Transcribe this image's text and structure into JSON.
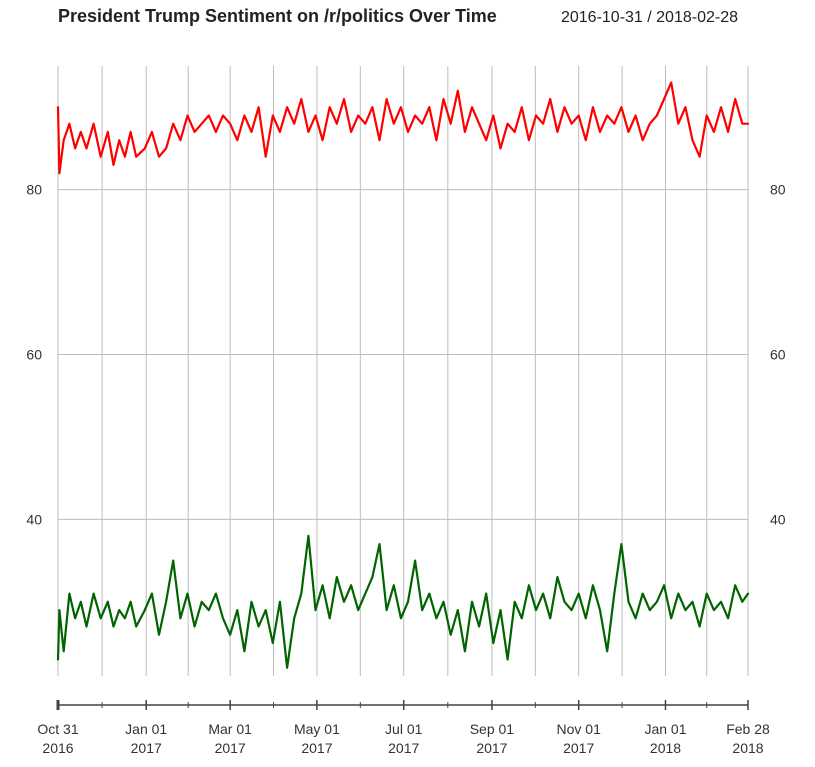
{
  "chart_data": {
    "type": "line",
    "title": "President Trump Sentiment on /r/politics Over Time",
    "date_range": "2016-10-31 / 2018-02-28",
    "ylim": [
      21,
      95
    ],
    "y_ticks": [
      {
        "value": 40,
        "label": "40"
      },
      {
        "value": 60,
        "label": "60"
      },
      {
        "value": 80,
        "label": "80"
      }
    ],
    "x_range": [
      "2016-10-31",
      "2018-02-28"
    ],
    "x_ticks": [
      {
        "date": "2016-10-31",
        "line1": "Oct 31",
        "line2": "2016"
      },
      {
        "date": "2017-01-01",
        "line1": "Jan 01",
        "line2": "2017"
      },
      {
        "date": "2017-03-01",
        "line1": "Mar 01",
        "line2": "2017"
      },
      {
        "date": "2017-05-01",
        "line1": "May 01",
        "line2": "2017"
      },
      {
        "date": "2017-07-01",
        "line1": "Jul 01",
        "line2": "2017"
      },
      {
        "date": "2017-09-01",
        "line1": "Sep 01",
        "line2": "2017"
      },
      {
        "date": "2017-11-01",
        "line1": "Nov 01",
        "line2": "2017"
      },
      {
        "date": "2018-01-01",
        "line1": "Jan 01",
        "line2": "2018"
      },
      {
        "date": "2018-02-28",
        "line1": "Feb 28",
        "line2": "2018"
      }
    ],
    "grid": true,
    "series": [
      {
        "color": "#ff0000",
        "points": [
          [
            "2016-10-31",
            90
          ],
          [
            "2016-11-01",
            82
          ],
          [
            "2016-11-04",
            86
          ],
          [
            "2016-11-08",
            88
          ],
          [
            "2016-11-12",
            85
          ],
          [
            "2016-11-16",
            87
          ],
          [
            "2016-11-20",
            85
          ],
          [
            "2016-11-25",
            88
          ],
          [
            "2016-11-30",
            84
          ],
          [
            "2016-12-05",
            87
          ],
          [
            "2016-12-09",
            83
          ],
          [
            "2016-12-13",
            86
          ],
          [
            "2016-12-17",
            84
          ],
          [
            "2016-12-21",
            87
          ],
          [
            "2016-12-25",
            84
          ],
          [
            "2016-12-31",
            85
          ],
          [
            "2017-01-05",
            87
          ],
          [
            "2017-01-10",
            84
          ],
          [
            "2017-01-15",
            85
          ],
          [
            "2017-01-20",
            88
          ],
          [
            "2017-01-25",
            86
          ],
          [
            "2017-01-30",
            89
          ],
          [
            "2017-02-04",
            87
          ],
          [
            "2017-02-09",
            88
          ],
          [
            "2017-02-14",
            89
          ],
          [
            "2017-02-19",
            87
          ],
          [
            "2017-02-24",
            89
          ],
          [
            "2017-03-01",
            88
          ],
          [
            "2017-03-06",
            86
          ],
          [
            "2017-03-11",
            89
          ],
          [
            "2017-03-16",
            87
          ],
          [
            "2017-03-21",
            90
          ],
          [
            "2017-03-26",
            84
          ],
          [
            "2017-03-31",
            89
          ],
          [
            "2017-04-05",
            87
          ],
          [
            "2017-04-10",
            90
          ],
          [
            "2017-04-15",
            88
          ],
          [
            "2017-04-20",
            91
          ],
          [
            "2017-04-25",
            87
          ],
          [
            "2017-04-30",
            89
          ],
          [
            "2017-05-05",
            86
          ],
          [
            "2017-05-10",
            90
          ],
          [
            "2017-05-15",
            88
          ],
          [
            "2017-05-20",
            91
          ],
          [
            "2017-05-25",
            87
          ],
          [
            "2017-05-30",
            89
          ],
          [
            "2017-06-04",
            88
          ],
          [
            "2017-06-09",
            90
          ],
          [
            "2017-06-14",
            86
          ],
          [
            "2017-06-19",
            91
          ],
          [
            "2017-06-24",
            88
          ],
          [
            "2017-06-29",
            90
          ],
          [
            "2017-07-04",
            87
          ],
          [
            "2017-07-09",
            89
          ],
          [
            "2017-07-14",
            88
          ],
          [
            "2017-07-19",
            90
          ],
          [
            "2017-07-24",
            86
          ],
          [
            "2017-07-29",
            91
          ],
          [
            "2017-08-03",
            88
          ],
          [
            "2017-08-08",
            92
          ],
          [
            "2017-08-13",
            87
          ],
          [
            "2017-08-18",
            90
          ],
          [
            "2017-08-23",
            88
          ],
          [
            "2017-08-28",
            86
          ],
          [
            "2017-09-02",
            89
          ],
          [
            "2017-09-07",
            85
          ],
          [
            "2017-09-12",
            88
          ],
          [
            "2017-09-17",
            87
          ],
          [
            "2017-09-22",
            90
          ],
          [
            "2017-09-27",
            86
          ],
          [
            "2017-10-02",
            89
          ],
          [
            "2017-10-07",
            88
          ],
          [
            "2017-10-12",
            91
          ],
          [
            "2017-10-17",
            87
          ],
          [
            "2017-10-22",
            90
          ],
          [
            "2017-10-27",
            88
          ],
          [
            "2017-11-01",
            89
          ],
          [
            "2017-11-06",
            86
          ],
          [
            "2017-11-11",
            90
          ],
          [
            "2017-11-16",
            87
          ],
          [
            "2017-11-21",
            89
          ],
          [
            "2017-11-26",
            88
          ],
          [
            "2017-12-01",
            90
          ],
          [
            "2017-12-06",
            87
          ],
          [
            "2017-12-11",
            89
          ],
          [
            "2017-12-16",
            86
          ],
          [
            "2017-12-21",
            88
          ],
          [
            "2017-12-26",
            89
          ],
          [
            "2017-12-31",
            91
          ],
          [
            "2018-01-05",
            93
          ],
          [
            "2018-01-10",
            88
          ],
          [
            "2018-01-15",
            90
          ],
          [
            "2018-01-20",
            86
          ],
          [
            "2018-01-25",
            84
          ],
          [
            "2018-01-30",
            89
          ],
          [
            "2018-02-04",
            87
          ],
          [
            "2018-02-09",
            90
          ],
          [
            "2018-02-14",
            87
          ],
          [
            "2018-02-19",
            91
          ],
          [
            "2018-02-24",
            88
          ],
          [
            "2018-02-28",
            88
          ]
        ]
      },
      {
        "color": "#006400",
        "points": [
          [
            "2016-10-31",
            23
          ],
          [
            "2016-11-01",
            29
          ],
          [
            "2016-11-04",
            24
          ],
          [
            "2016-11-08",
            31
          ],
          [
            "2016-11-12",
            28
          ],
          [
            "2016-11-16",
            30
          ],
          [
            "2016-11-20",
            27
          ],
          [
            "2016-11-25",
            31
          ],
          [
            "2016-11-30",
            28
          ],
          [
            "2016-12-05",
            30
          ],
          [
            "2016-12-09",
            27
          ],
          [
            "2016-12-13",
            29
          ],
          [
            "2016-12-17",
            28
          ],
          [
            "2016-12-21",
            30
          ],
          [
            "2016-12-25",
            27
          ],
          [
            "2016-12-31",
            29
          ],
          [
            "2017-01-05",
            31
          ],
          [
            "2017-01-10",
            26
          ],
          [
            "2017-01-15",
            30
          ],
          [
            "2017-01-20",
            35
          ],
          [
            "2017-01-25",
            28
          ],
          [
            "2017-01-30",
            31
          ],
          [
            "2017-02-04",
            27
          ],
          [
            "2017-02-09",
            30
          ],
          [
            "2017-02-14",
            29
          ],
          [
            "2017-02-19",
            31
          ],
          [
            "2017-02-24",
            28
          ],
          [
            "2017-03-01",
            26
          ],
          [
            "2017-03-06",
            29
          ],
          [
            "2017-03-11",
            24
          ],
          [
            "2017-03-16",
            30
          ],
          [
            "2017-03-21",
            27
          ],
          [
            "2017-03-26",
            29
          ],
          [
            "2017-03-31",
            25
          ],
          [
            "2017-04-05",
            30
          ],
          [
            "2017-04-10",
            22
          ],
          [
            "2017-04-15",
            28
          ],
          [
            "2017-04-20",
            31
          ],
          [
            "2017-04-25",
            38
          ],
          [
            "2017-04-30",
            29
          ],
          [
            "2017-05-05",
            32
          ],
          [
            "2017-05-10",
            28
          ],
          [
            "2017-05-15",
            33
          ],
          [
            "2017-05-20",
            30
          ],
          [
            "2017-05-25",
            32
          ],
          [
            "2017-05-30",
            29
          ],
          [
            "2017-06-04",
            31
          ],
          [
            "2017-06-09",
            33
          ],
          [
            "2017-06-14",
            37
          ],
          [
            "2017-06-19",
            29
          ],
          [
            "2017-06-24",
            32
          ],
          [
            "2017-06-29",
            28
          ],
          [
            "2017-07-04",
            30
          ],
          [
            "2017-07-09",
            35
          ],
          [
            "2017-07-14",
            29
          ],
          [
            "2017-07-19",
            31
          ],
          [
            "2017-07-24",
            28
          ],
          [
            "2017-07-29",
            30
          ],
          [
            "2017-08-03",
            26
          ],
          [
            "2017-08-08",
            29
          ],
          [
            "2017-08-13",
            24
          ],
          [
            "2017-08-18",
            30
          ],
          [
            "2017-08-23",
            27
          ],
          [
            "2017-08-28",
            31
          ],
          [
            "2017-09-02",
            25
          ],
          [
            "2017-09-07",
            29
          ],
          [
            "2017-09-12",
            23
          ],
          [
            "2017-09-17",
            30
          ],
          [
            "2017-09-22",
            28
          ],
          [
            "2017-09-27",
            32
          ],
          [
            "2017-10-02",
            29
          ],
          [
            "2017-10-07",
            31
          ],
          [
            "2017-10-12",
            28
          ],
          [
            "2017-10-17",
            33
          ],
          [
            "2017-10-22",
            30
          ],
          [
            "2017-10-27",
            29
          ],
          [
            "2017-11-01",
            31
          ],
          [
            "2017-11-06",
            28
          ],
          [
            "2017-11-11",
            32
          ],
          [
            "2017-11-16",
            29
          ],
          [
            "2017-11-21",
            24
          ],
          [
            "2017-11-26",
            31
          ],
          [
            "2017-12-01",
            37
          ],
          [
            "2017-12-06",
            30
          ],
          [
            "2017-12-11",
            28
          ],
          [
            "2017-12-16",
            31
          ],
          [
            "2017-12-21",
            29
          ],
          [
            "2017-12-26",
            30
          ],
          [
            "2017-12-31",
            32
          ],
          [
            "2018-01-05",
            28
          ],
          [
            "2018-01-10",
            31
          ],
          [
            "2018-01-15",
            29
          ],
          [
            "2018-01-20",
            30
          ],
          [
            "2018-01-25",
            27
          ],
          [
            "2018-01-30",
            31
          ],
          [
            "2018-02-04",
            29
          ],
          [
            "2018-02-09",
            30
          ],
          [
            "2018-02-14",
            28
          ],
          [
            "2018-02-19",
            32
          ],
          [
            "2018-02-24",
            30
          ],
          [
            "2018-02-28",
            31
          ]
        ]
      }
    ]
  }
}
